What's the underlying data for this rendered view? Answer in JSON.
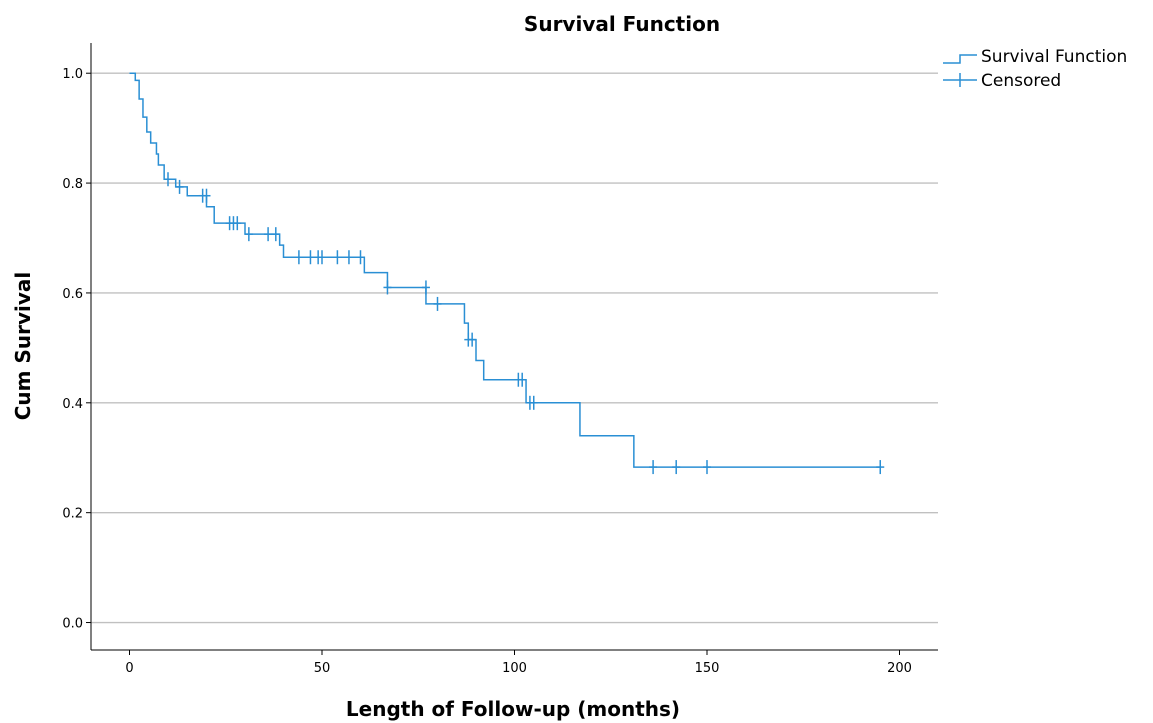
{
  "chart_data": {
    "type": "line",
    "title": "Survival Function",
    "xlabel": "Length of Follow-up (months)",
    "ylabel": "Cum Survival",
    "xlim": [
      -10,
      210
    ],
    "ylim": [
      -0.05,
      1.055
    ],
    "x_ticks": [
      "0",
      "50",
      "100",
      "150",
      "200"
    ],
    "y_ticks": [
      "0.0",
      "0.2",
      "0.4",
      "0.6",
      "0.8",
      "1.0"
    ],
    "grid": "horizontal",
    "legend_position": "top-right",
    "colors": {
      "series": "#2a8fd4",
      "grid": "#c0c0c0",
      "axis": "#000000"
    },
    "series": [
      {
        "name": "Survival Function",
        "style": "step",
        "x": [
          0,
          1.5,
          2.5,
          3.5,
          4.5,
          5.5,
          7,
          7.5,
          9,
          12,
          15,
          20,
          22,
          24,
          30,
          39,
          40,
          61,
          62,
          67,
          77,
          78,
          87,
          88,
          89,
          90,
          92,
          103,
          104,
          117,
          131,
          195
        ],
        "y": [
          1.0,
          0.987,
          0.953,
          0.92,
          0.893,
          0.873,
          0.853,
          0.833,
          0.807,
          0.793,
          0.777,
          0.757,
          0.727,
          0.727,
          0.707,
          0.687,
          0.665,
          0.637,
          0.637,
          0.61,
          0.58,
          0.58,
          0.545,
          0.515,
          0.515,
          0.477,
          0.442,
          0.4,
          0.4,
          0.34,
          0.283,
          0.283
        ]
      }
    ],
    "censored": {
      "name": "Censored",
      "points": [
        {
          "x": 10,
          "y": 0.807
        },
        {
          "x": 13,
          "y": 0.793
        },
        {
          "x": 19,
          "y": 0.777
        },
        {
          "x": 20,
          "y": 0.777
        },
        {
          "x": 26,
          "y": 0.727
        },
        {
          "x": 27,
          "y": 0.727
        },
        {
          "x": 28,
          "y": 0.727
        },
        {
          "x": 31,
          "y": 0.707
        },
        {
          "x": 36,
          "y": 0.707
        },
        {
          "x": 38,
          "y": 0.707
        },
        {
          "x": 44,
          "y": 0.665
        },
        {
          "x": 47,
          "y": 0.665
        },
        {
          "x": 49,
          "y": 0.665
        },
        {
          "x": 50,
          "y": 0.665
        },
        {
          "x": 54,
          "y": 0.665
        },
        {
          "x": 57,
          "y": 0.665
        },
        {
          "x": 60,
          "y": 0.665
        },
        {
          "x": 67,
          "y": 0.61
        },
        {
          "x": 77,
          "y": 0.61
        },
        {
          "x": 80,
          "y": 0.58
        },
        {
          "x": 88,
          "y": 0.515
        },
        {
          "x": 89,
          "y": 0.515
        },
        {
          "x": 101,
          "y": 0.442
        },
        {
          "x": 102,
          "y": 0.442
        },
        {
          "x": 104,
          "y": 0.4
        },
        {
          "x": 105,
          "y": 0.4
        },
        {
          "x": 136,
          "y": 0.283
        },
        {
          "x": 142,
          "y": 0.283
        },
        {
          "x": 150,
          "y": 0.283
        },
        {
          "x": 195,
          "y": 0.283
        }
      ]
    }
  }
}
